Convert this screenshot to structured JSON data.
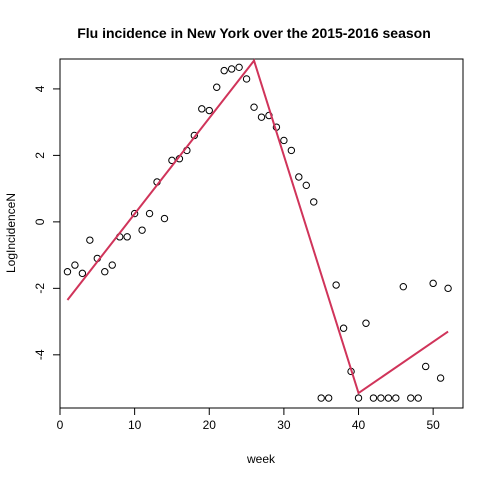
{
  "chart_data": {
    "type": "scatter",
    "title": "Flu incidence in New York over the 2015-2016 season",
    "xlabel": "week",
    "ylabel": "LogIncidenceN",
    "xlim": [
      0,
      54
    ],
    "ylim": [
      -5.6,
      4.9
    ],
    "xticks": [
      0,
      10,
      20,
      30,
      40,
      50
    ],
    "yticks": [
      -4,
      -2,
      0,
      2,
      4
    ],
    "grid": false,
    "points": {
      "x": [
        1,
        2,
        3,
        4,
        5,
        6,
        7,
        8,
        9,
        10,
        11,
        12,
        13,
        14,
        15,
        16,
        17,
        18,
        19,
        20,
        21,
        22,
        23,
        24,
        25,
        26,
        27,
        28,
        29,
        30,
        31,
        32,
        33,
        34,
        35,
        36,
        37,
        38,
        39,
        40,
        41,
        42,
        43,
        44,
        45,
        46,
        47,
        48,
        49,
        50,
        51,
        52
      ],
      "y": [
        -1.5,
        -1.3,
        -1.55,
        -0.55,
        -1.1,
        -1.5,
        -1.3,
        -0.45,
        -0.45,
        0.25,
        -0.25,
        0.25,
        1.2,
        0.1,
        1.85,
        1.9,
        2.15,
        2.6,
        3.4,
        3.35,
        4.05,
        4.55,
        4.6,
        4.65,
        4.3,
        3.45,
        3.15,
        3.2,
        2.85,
        2.45,
        2.15,
        1.35,
        1.1,
        0.6,
        -5.3,
        -5.3,
        -1.9,
        -3.2,
        -4.5,
        -5.3,
        -3.05,
        -5.3,
        -5.3,
        -5.3,
        -5.3,
        -1.95,
        -5.3,
        -5.3,
        -4.35,
        -1.85,
        -4.7,
        -2.0
      ]
    },
    "fit_line": {
      "x": [
        1,
        26,
        40,
        52
      ],
      "y": [
        -2.35,
        4.85,
        -5.15,
        -3.3
      ],
      "color": "#d0345a"
    }
  }
}
